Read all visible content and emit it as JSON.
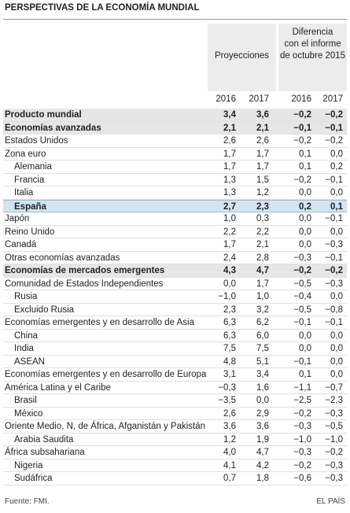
{
  "header": {
    "title": "PERSPECTIVAS DE LA ECONOMÍA MUNDIAL",
    "group1": "Proyecciones",
    "group2": [
      "Diferencia",
      "con el informe",
      "de octubre 2015"
    ],
    "years": [
      "2016",
      "2017",
      "2016",
      "2017"
    ]
  },
  "table": {
    "rows": [
      [
        "Producto mundial",
        "3,4",
        "3,6",
        "−0,2",
        "−0,2"
      ],
      [
        "Economías avanzadas",
        "2,1",
        "2,1",
        "−0,1",
        "−0,1"
      ],
      [
        "Estados Unidos",
        "2,6",
        "2,6",
        "−0,2",
        "−0,2"
      ],
      [
        "Zona euro",
        "1,7",
        "1,7",
        "0,1",
        "0,0"
      ],
      [
        "Alemania",
        "1,7",
        "1,7",
        "0,1",
        "0,2"
      ],
      [
        "Francia",
        "1,3",
        "1,5",
        "−0,2",
        "−0,1"
      ],
      [
        "Italia",
        "1,3",
        "1,2",
        "0,0",
        "0,0"
      ],
      [
        "España",
        "2,7",
        "2,3",
        "0,2",
        "0,1"
      ],
      [
        "Japón",
        "1,0",
        "0,3",
        "0,0",
        "−0,1"
      ],
      [
        "Reino Unido",
        "2,2",
        "2,2",
        "0,0",
        "0,0"
      ],
      [
        "Canadá",
        "1,7",
        "2,1",
        "0,0",
        "−0,3"
      ],
      [
        "Otras economías avanzadas",
        "2,4",
        "2,8",
        "−0,3",
        "−0,1"
      ],
      [
        "Economías de mercados emergentes",
        "4,3",
        "4,7",
        "−0,2",
        "−0,2"
      ],
      [
        "Comunidad de Estados Independientes",
        "0,0",
        "1,7",
        "−0,5",
        "−0,3"
      ],
      [
        "Rusia",
        "−1,0",
        "1,0",
        "−0,4",
        "0,0"
      ],
      [
        "Excluido Rusia",
        "2,3",
        "3,2",
        "−0,5",
        "−0,8"
      ],
      [
        "Economías emergentes y en desarrollo de Asia",
        "6,3",
        "6,2",
        "−0,1",
        "−0,1"
      ],
      [
        "China",
        "6,3",
        "6,0",
        "0,0",
        "0,0"
      ],
      [
        "India",
        "7,5",
        "7,5",
        "0,0",
        "0,0"
      ],
      [
        "ASEAN",
        "4,8",
        "5,1",
        "−0,1",
        "0,0"
      ],
      [
        "Economías emergentes y en desarrollo de Europa",
        "3,1",
        "3,4",
        "0,1",
        "0,0"
      ],
      [
        "América Latina y el Caribe",
        "−0,3",
        "1,6",
        "−1,1",
        "−0,7"
      ],
      [
        "Brasil",
        "−3,5",
        "0,0",
        "−2,5",
        "−2,3"
      ],
      [
        "México",
        "2,6",
        "2,9",
        "−0,2",
        "−0,3"
      ],
      [
        "Oriente Medio, N, de África, Afganistán y Pakistán",
        "3,6",
        "3,6",
        "−0,3",
        "−0,5"
      ],
      [
        "Arabia Saudita",
        "1,2",
        "1,9",
        "−1,0",
        "−1,0"
      ],
      [
        "África subsahariana",
        "4,0",
        "4,7",
        "−0,3",
        "−0,2"
      ],
      [
        "Nigeria",
        "4,1",
        "4,2",
        "−0,2",
        "−0,3"
      ],
      [
        "Sudáfrica",
        "0,7",
        "1,8",
        "−0,6",
        "−0,3"
      ]
    ]
  },
  "footer": {
    "source": "Fuente: FMI.",
    "brand": "EL PAÍS"
  }
}
